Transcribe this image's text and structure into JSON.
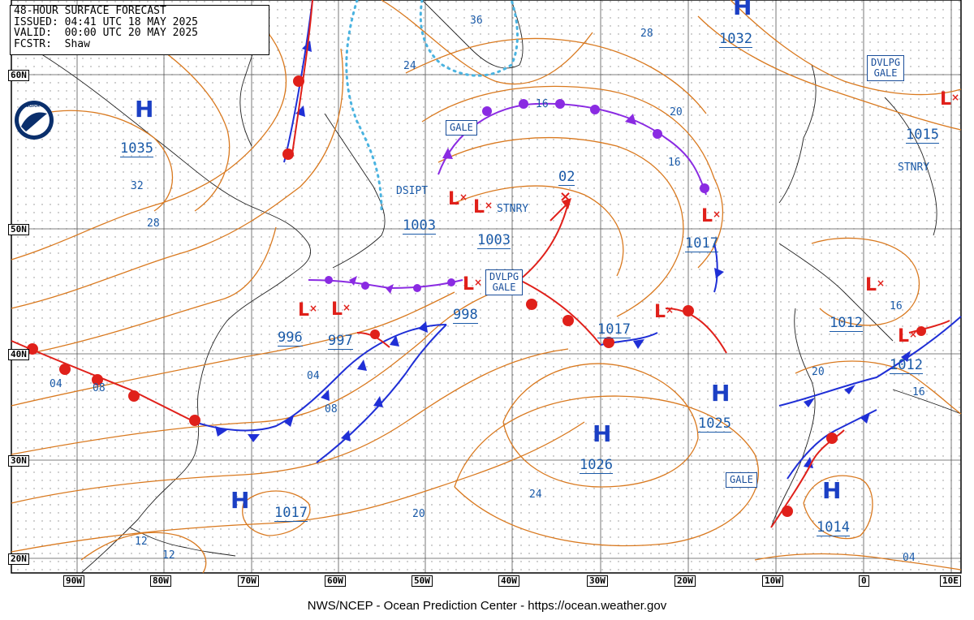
{
  "header": {
    "line1": "48-HOUR SURFACE FORECAST",
    "line2": "ISSUED: 04:41 UTC 18 MAY 2025",
    "line3": "VALID:  00:00 UTC 20 MAY 2025",
    "line4": "FCSTR:  Shaw"
  },
  "footer": "NWS/NCEP - Ocean Prediction Center - https://ocean.weather.gov",
  "logo_text": "NOAA",
  "lat_labels": [
    "60N",
    "50N",
    "40N",
    "30N",
    "20N"
  ],
  "lon_labels": [
    "90W",
    "80W",
    "70W",
    "60W",
    "50W",
    "40W",
    "30W",
    "20W",
    "10W",
    "0",
    "10E"
  ],
  "highs": [
    {
      "pressure": "1032"
    },
    {
      "pressure": "1035"
    },
    {
      "pressure": "1025"
    },
    {
      "pressure": "1026"
    },
    {
      "pressure": "1017"
    },
    {
      "pressure": "1014"
    }
  ],
  "lows": [
    {
      "pressure": "1003"
    },
    {
      "pressure": "1003"
    },
    {
      "pressure": "1017"
    },
    {
      "pressure": "998"
    },
    {
      "pressure": "996"
    },
    {
      "pressure": "997"
    },
    {
      "pressure": "1017"
    },
    {
      "pressure": "1012"
    },
    {
      "pressure": "1012"
    },
    {
      "pressure": "1015"
    }
  ],
  "forecast_low_label": "02",
  "boxes": {
    "gale1": "GALE",
    "gale2": "GALE",
    "dvlpg_gale1": [
      "DVLPG",
      "GALE"
    ],
    "dvlpg_gale2": [
      "DVLPG",
      "GALE"
    ]
  },
  "tags": {
    "dsipt": "DSIPT",
    "stnry1": "STNRY",
    "stnry2": "STNRY"
  },
  "isobar_labels": [
    "36",
    "28",
    "24",
    "20",
    "16",
    "16",
    "32",
    "28",
    "04",
    "08",
    "04",
    "08",
    "20",
    "16",
    "16",
    "24",
    "20",
    "12",
    "12",
    "04"
  ],
  "colors": {
    "isobar": "#d9791f",
    "cold_front": "#1f2fd6",
    "warm_front": "#e0201a",
    "occluded": "#8a2be2",
    "ice_edge": "#4ab3e0",
    "label_blue": "#1a5aa8"
  }
}
